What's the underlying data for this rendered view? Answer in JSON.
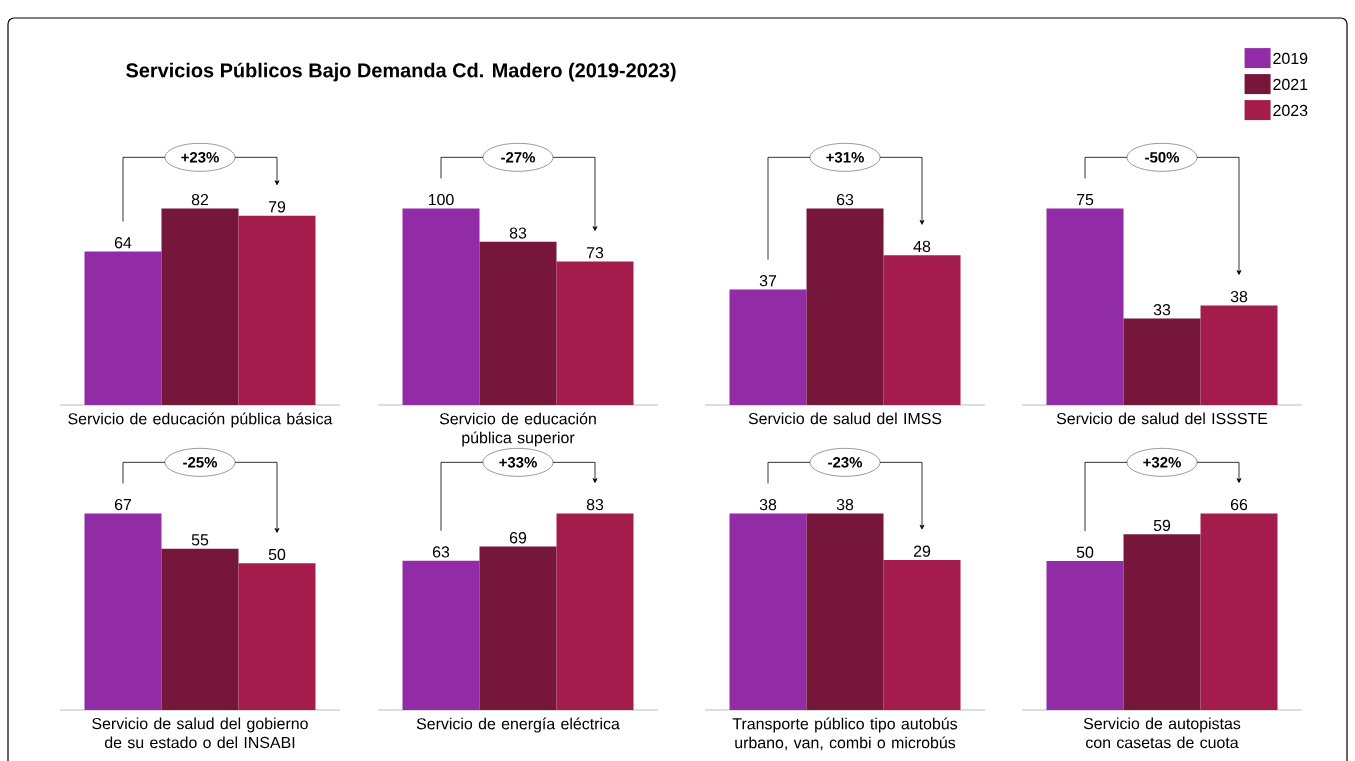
{
  "chart_data": [
    {
      "type": "bar",
      "title": "Servicios Públicos Bajo Demanda Cd. Madero (2019-2023)",
      "xlabel": "Servicio de educación pública básica",
      "categories": [
        null
      ],
      "data_labels": true,
      "annotations": [
        "+23%"
      ],
      "series": [
        {
          "color": "#922ba6",
          "values": [
            64
          ]
        },
        {
          "color": "#76163a",
          "values": [
            82
          ]
        },
        {
          "color": "#a31c4b",
          "values": [
            79
          ]
        }
      ]
    },
    {
      "type": "bar",
      "xlabel": "Servicio de educación pública superior",
      "categories": [
        null
      ],
      "data_labels": true,
      "annotations": [
        "-27%"
      ],
      "series": [
        {
          "color": "#922ba6",
          "values": [
            100
          ]
        },
        {
          "color": "#76163a",
          "values": [
            83
          ]
        },
        {
          "color": "#a31c4b",
          "values": [
            73
          ]
        }
      ]
    },
    {
      "type": "bar",
      "xlabel": "Servicio de salud del IMSS",
      "categories": [
        null
      ],
      "data_labels": true,
      "annotations": [
        "+31%"
      ],
      "series": [
        {
          "color": "#922ba6",
          "values": [
            37
          ]
        },
        {
          "color": "#76163a",
          "values": [
            63
          ]
        },
        {
          "color": "#a31c4b",
          "values": [
            48
          ]
        }
      ]
    },
    {
      "type": "bar",
      "xlabel": "Servicio de salud del ISSSTE",
      "categories": [
        null
      ],
      "data_labels": true,
      "annotations": [
        "-50%"
      ],
      "legend": "top right",
      "series": [
        {
          "name": "2019",
          "color": "#922ba6",
          "values": [
            75
          ]
        },
        {
          "name": "2021",
          "color": "#76163a",
          "values": [
            33
          ]
        },
        {
          "name": "2023",
          "color": "#a31c4b",
          "values": [
            38
          ]
        }
      ]
    },
    {
      "type": "bar",
      "xlabel": "Servicio de salud del gobierno de su estado o del INSABI",
      "categories": [
        null
      ],
      "data_labels": true,
      "annotations": [
        "-25%"
      ],
      "series": [
        {
          "color": "#922ba6",
          "values": [
            67
          ]
        },
        {
          "color": "#76163a",
          "values": [
            55
          ]
        },
        {
          "color": "#a31c4b",
          "values": [
            50
          ]
        }
      ]
    },
    {
      "type": "bar",
      "xlabel": "Servicio de energía eléctrica",
      "categories": [
        null
      ],
      "data_labels": true,
      "annotations": [
        "+33%"
      ],
      "series": [
        {
          "color": "#922ba6",
          "values": [
            63
          ]
        },
        {
          "color": "#76163a",
          "values": [
            69
          ]
        },
        {
          "color": "#a31c4b",
          "values": [
            83
          ]
        }
      ]
    },
    {
      "type": "bar",
      "xlabel": "Transporte público tipo autobús urbano, van, combi o microbús",
      "categories": [
        null
      ],
      "data_labels": true,
      "annotations": [
        "-23%"
      ],
      "series": [
        {
          "color": "#922ba6",
          "values": [
            38
          ]
        },
        {
          "color": "#76163a",
          "values": [
            38
          ]
        },
        {
          "color": "#a31c4b",
          "values": [
            29
          ]
        }
      ]
    },
    {
      "type": "bar",
      "xlabel": "Servicio de autopistas con casetas de cuota",
      "categories": [
        null
      ],
      "data_labels": true,
      "annotations": [
        "+32%"
      ],
      "series": [
        {
          "color": "#922ba6",
          "values": [
            50
          ]
        },
        {
          "color": "#76163a",
          "values": [
            59
          ]
        },
        {
          "color": "#a31c4b",
          "values": [
            66
          ]
        }
      ]
    }
  ]
}
